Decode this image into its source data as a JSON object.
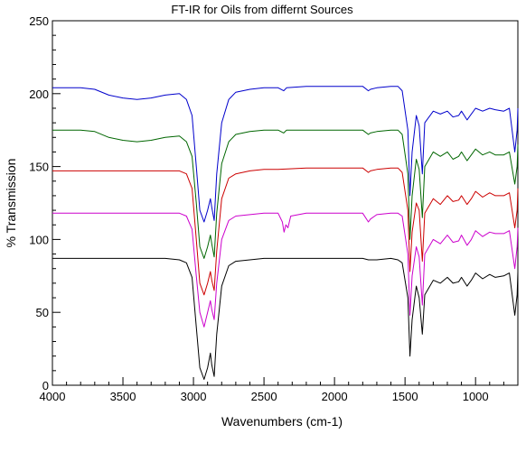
{
  "chart_data": {
    "type": "line",
    "title": "FT-IR for Oils from differnt Sources",
    "xlabel": "Wavenumbers (cm-1)",
    "ylabel": "% Transmission",
    "xlim": [
      4000,
      700
    ],
    "ylim": [
      0,
      250
    ],
    "x_reversed": true,
    "grid": false,
    "legend": "none",
    "x_ticks": [
      4000,
      3500,
      3000,
      2500,
      2000,
      1500,
      1000
    ],
    "y_ticks": [
      0,
      50,
      100,
      150,
      200,
      250
    ],
    "series": [
      {
        "color": "#0000cc",
        "points": [
          [
            4000,
            204
          ],
          [
            3900,
            204
          ],
          [
            3800,
            204
          ],
          [
            3700,
            203
          ],
          [
            3600,
            199
          ],
          [
            3500,
            197
          ],
          [
            3400,
            196
          ],
          [
            3300,
            197
          ],
          [
            3200,
            199
          ],
          [
            3100,
            200
          ],
          [
            3050,
            196
          ],
          [
            3010,
            185
          ],
          [
            2980,
            150
          ],
          [
            2955,
            120
          ],
          [
            2925,
            112
          ],
          [
            2900,
            120
          ],
          [
            2880,
            128
          ],
          [
            2870,
            122
          ],
          [
            2853,
            113
          ],
          [
            2835,
            145
          ],
          [
            2800,
            180
          ],
          [
            2750,
            196
          ],
          [
            2700,
            201
          ],
          [
            2600,
            203
          ],
          [
            2500,
            204
          ],
          [
            2400,
            204
          ],
          [
            2360,
            202
          ],
          [
            2340,
            204
          ],
          [
            2200,
            205
          ],
          [
            2000,
            205
          ],
          [
            1800,
            205
          ],
          [
            1760,
            202
          ],
          [
            1745,
            203
          ],
          [
            1700,
            204
          ],
          [
            1600,
            205
          ],
          [
            1550,
            205
          ],
          [
            1520,
            202
          ],
          [
            1480,
            175
          ],
          [
            1465,
            130
          ],
          [
            1450,
            160
          ],
          [
            1420,
            185
          ],
          [
            1400,
            178
          ],
          [
            1377,
            145
          ],
          [
            1360,
            180
          ],
          [
            1300,
            188
          ],
          [
            1250,
            186
          ],
          [
            1200,
            188
          ],
          [
            1160,
            184
          ],
          [
            1120,
            185
          ],
          [
            1100,
            188
          ],
          [
            1060,
            182
          ],
          [
            1030,
            186
          ],
          [
            1000,
            190
          ],
          [
            950,
            188
          ],
          [
            900,
            190
          ],
          [
            860,
            189
          ],
          [
            800,
            188
          ],
          [
            760,
            190
          ],
          [
            722,
            160
          ],
          [
            705,
            175
          ],
          [
            700,
            190
          ]
        ]
      },
      {
        "color": "#006600",
        "points": [
          [
            4000,
            175
          ],
          [
            3900,
            175
          ],
          [
            3800,
            175
          ],
          [
            3700,
            174
          ],
          [
            3600,
            170
          ],
          [
            3500,
            168
          ],
          [
            3400,
            167
          ],
          [
            3300,
            168
          ],
          [
            3200,
            170
          ],
          [
            3100,
            171
          ],
          [
            3050,
            167
          ],
          [
            3010,
            157
          ],
          [
            2980,
            125
          ],
          [
            2955,
            95
          ],
          [
            2925,
            87
          ],
          [
            2900,
            95
          ],
          [
            2880,
            103
          ],
          [
            2870,
            97
          ],
          [
            2853,
            88
          ],
          [
            2835,
            118
          ],
          [
            2800,
            152
          ],
          [
            2750,
            167
          ],
          [
            2700,
            172
          ],
          [
            2600,
            174
          ],
          [
            2500,
            175
          ],
          [
            2400,
            175
          ],
          [
            2360,
            173
          ],
          [
            2340,
            175
          ],
          [
            2200,
            175
          ],
          [
            2000,
            175
          ],
          [
            1800,
            175
          ],
          [
            1760,
            172
          ],
          [
            1745,
            173
          ],
          [
            1700,
            174
          ],
          [
            1600,
            175
          ],
          [
            1550,
            175
          ],
          [
            1520,
            172
          ],
          [
            1480,
            145
          ],
          [
            1465,
            100
          ],
          [
            1450,
            130
          ],
          [
            1420,
            155
          ],
          [
            1400,
            148
          ],
          [
            1377,
            115
          ],
          [
            1360,
            150
          ],
          [
            1300,
            160
          ],
          [
            1250,
            157
          ],
          [
            1200,
            160
          ],
          [
            1160,
            155
          ],
          [
            1120,
            157
          ],
          [
            1100,
            160
          ],
          [
            1060,
            154
          ],
          [
            1030,
            158
          ],
          [
            1000,
            162
          ],
          [
            950,
            158
          ],
          [
            900,
            160
          ],
          [
            860,
            158
          ],
          [
            800,
            158
          ],
          [
            760,
            160
          ],
          [
            722,
            138
          ],
          [
            705,
            150
          ],
          [
            700,
            165
          ]
        ]
      },
      {
        "color": "#cc0000",
        "points": [
          [
            4000,
            147
          ],
          [
            3900,
            147
          ],
          [
            3800,
            147
          ],
          [
            3700,
            147
          ],
          [
            3600,
            147
          ],
          [
            3500,
            147
          ],
          [
            3400,
            147
          ],
          [
            3300,
            147
          ],
          [
            3200,
            147
          ],
          [
            3100,
            147
          ],
          [
            3050,
            145
          ],
          [
            3010,
            135
          ],
          [
            2980,
            100
          ],
          [
            2955,
            70
          ],
          [
            2925,
            62
          ],
          [
            2900,
            70
          ],
          [
            2880,
            78
          ],
          [
            2870,
            72
          ],
          [
            2853,
            65
          ],
          [
            2835,
            92
          ],
          [
            2800,
            128
          ],
          [
            2750,
            142
          ],
          [
            2700,
            145
          ],
          [
            2600,
            147
          ],
          [
            2500,
            148
          ],
          [
            2400,
            148
          ],
          [
            2200,
            149
          ],
          [
            2000,
            149
          ],
          [
            1800,
            149
          ],
          [
            1760,
            146
          ],
          [
            1745,
            147
          ],
          [
            1700,
            148
          ],
          [
            1600,
            149
          ],
          [
            1550,
            149
          ],
          [
            1520,
            146
          ],
          [
            1480,
            120
          ],
          [
            1465,
            78
          ],
          [
            1450,
            105
          ],
          [
            1420,
            125
          ],
          [
            1400,
            120
          ],
          [
            1377,
            85
          ],
          [
            1360,
            118
          ],
          [
            1300,
            128
          ],
          [
            1250,
            124
          ],
          [
            1200,
            130
          ],
          [
            1160,
            126
          ],
          [
            1120,
            127
          ],
          [
            1100,
            130
          ],
          [
            1060,
            124
          ],
          [
            1030,
            128
          ],
          [
            1000,
            133
          ],
          [
            950,
            129
          ],
          [
            900,
            132
          ],
          [
            860,
            130
          ],
          [
            800,
            130
          ],
          [
            760,
            132
          ],
          [
            722,
            108
          ],
          [
            705,
            120
          ],
          [
            700,
            135
          ]
        ]
      },
      {
        "color": "#cc00cc",
        "points": [
          [
            4000,
            118
          ],
          [
            3900,
            118
          ],
          [
            3800,
            118
          ],
          [
            3700,
            118
          ],
          [
            3600,
            118
          ],
          [
            3500,
            118
          ],
          [
            3400,
            118
          ],
          [
            3300,
            118
          ],
          [
            3200,
            118
          ],
          [
            3100,
            118
          ],
          [
            3050,
            116
          ],
          [
            3010,
            107
          ],
          [
            2980,
            75
          ],
          [
            2955,
            50
          ],
          [
            2925,
            40
          ],
          [
            2900,
            50
          ],
          [
            2880,
            58
          ],
          [
            2870,
            52
          ],
          [
            2853,
            45
          ],
          [
            2835,
            70
          ],
          [
            2800,
            100
          ],
          [
            2750,
            113
          ],
          [
            2700,
            116
          ],
          [
            2600,
            117
          ],
          [
            2500,
            118
          ],
          [
            2400,
            118
          ],
          [
            2370,
            112
          ],
          [
            2358,
            105
          ],
          [
            2345,
            110
          ],
          [
            2330,
            108
          ],
          [
            2310,
            116
          ],
          [
            2200,
            118
          ],
          [
            2000,
            118
          ],
          [
            1800,
            118
          ],
          [
            1760,
            112
          ],
          [
            1745,
            114
          ],
          [
            1700,
            117
          ],
          [
            1600,
            118
          ],
          [
            1550,
            118
          ],
          [
            1520,
            116
          ],
          [
            1480,
            90
          ],
          [
            1465,
            48
          ],
          [
            1450,
            75
          ],
          [
            1420,
            95
          ],
          [
            1400,
            88
          ],
          [
            1377,
            55
          ],
          [
            1360,
            90
          ],
          [
            1300,
            100
          ],
          [
            1250,
            97
          ],
          [
            1200,
            103
          ],
          [
            1160,
            98
          ],
          [
            1120,
            99
          ],
          [
            1100,
            103
          ],
          [
            1060,
            96
          ],
          [
            1030,
            100
          ],
          [
            1000,
            106
          ],
          [
            950,
            102
          ],
          [
            900,
            105
          ],
          [
            860,
            104
          ],
          [
            800,
            104
          ],
          [
            760,
            106
          ],
          [
            722,
            80
          ],
          [
            705,
            95
          ],
          [
            700,
            108
          ]
        ]
      },
      {
        "color": "#000000",
        "points": [
          [
            4000,
            87
          ],
          [
            3900,
            87
          ],
          [
            3800,
            87
          ],
          [
            3700,
            87
          ],
          [
            3600,
            87
          ],
          [
            3500,
            87
          ],
          [
            3400,
            87
          ],
          [
            3300,
            87
          ],
          [
            3200,
            87
          ],
          [
            3100,
            86
          ],
          [
            3050,
            84
          ],
          [
            3010,
            74
          ],
          [
            2980,
            40
          ],
          [
            2955,
            12
          ],
          [
            2925,
            4
          ],
          [
            2900,
            12
          ],
          [
            2880,
            22
          ],
          [
            2870,
            14
          ],
          [
            2853,
            6
          ],
          [
            2835,
            35
          ],
          [
            2800,
            68
          ],
          [
            2750,
            82
          ],
          [
            2700,
            85
          ],
          [
            2600,
            86
          ],
          [
            2500,
            87
          ],
          [
            2400,
            87
          ],
          [
            2200,
            87
          ],
          [
            2000,
            87
          ],
          [
            1800,
            87
          ],
          [
            1760,
            86
          ],
          [
            1745,
            86
          ],
          [
            1700,
            86
          ],
          [
            1600,
            87
          ],
          [
            1550,
            86
          ],
          [
            1520,
            84
          ],
          [
            1480,
            60
          ],
          [
            1465,
            20
          ],
          [
            1450,
            45
          ],
          [
            1420,
            68
          ],
          [
            1400,
            60
          ],
          [
            1377,
            35
          ],
          [
            1360,
            62
          ],
          [
            1300,
            72
          ],
          [
            1250,
            70
          ],
          [
            1200,
            74
          ],
          [
            1160,
            70
          ],
          [
            1120,
            71
          ],
          [
            1100,
            74
          ],
          [
            1060,
            68
          ],
          [
            1030,
            72
          ],
          [
            1000,
            77
          ],
          [
            950,
            73
          ],
          [
            900,
            76
          ],
          [
            860,
            74
          ],
          [
            800,
            75
          ],
          [
            760,
            77
          ],
          [
            722,
            48
          ],
          [
            705,
            62
          ],
          [
            700,
            78
          ]
        ]
      }
    ]
  }
}
